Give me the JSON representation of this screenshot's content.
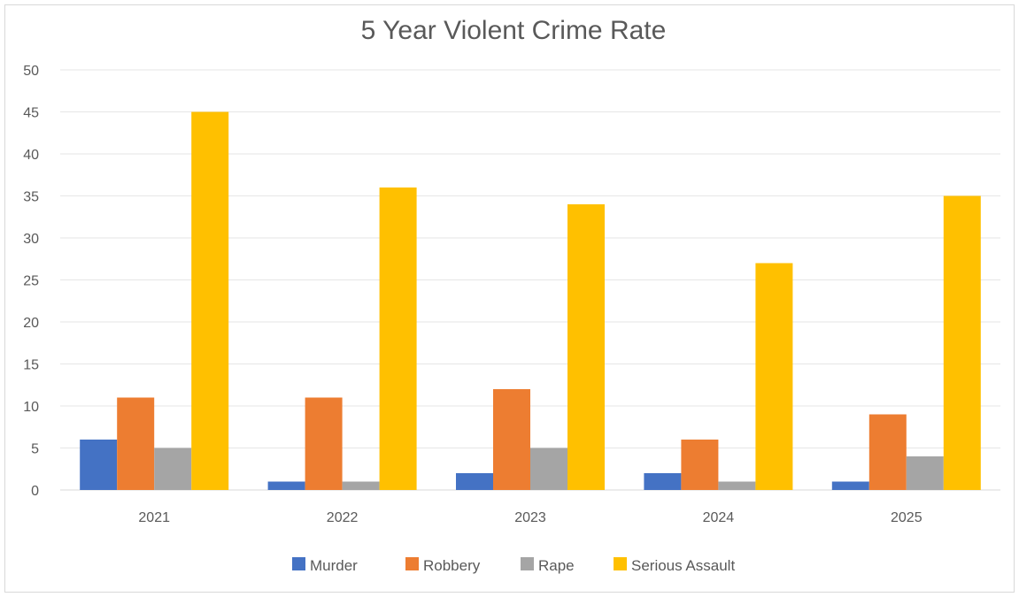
{
  "chart_data": {
    "type": "bar",
    "title": "5 Year Violent Crime Rate",
    "categories": [
      "2021",
      "2022",
      "2023",
      "2024",
      "2025"
    ],
    "series": [
      {
        "name": "Murder",
        "color": "#4472c4",
        "values": [
          6,
          1,
          2,
          2,
          1
        ]
      },
      {
        "name": "Robbery",
        "color": "#ed7d31",
        "values": [
          11,
          11,
          12,
          6,
          9
        ]
      },
      {
        "name": "Rape",
        "color": "#a5a5a5",
        "values": [
          5,
          1,
          5,
          1,
          4
        ]
      },
      {
        "name": "Serious Assault",
        "color": "#ffc000",
        "values": [
          45,
          36,
          34,
          27,
          35
        ]
      }
    ],
    "ylim": [
      0,
      50
    ],
    "yticks": [
      0,
      5,
      10,
      15,
      20,
      25,
      30,
      35,
      40,
      45,
      50
    ],
    "grid": true,
    "legend": "bottom"
  }
}
